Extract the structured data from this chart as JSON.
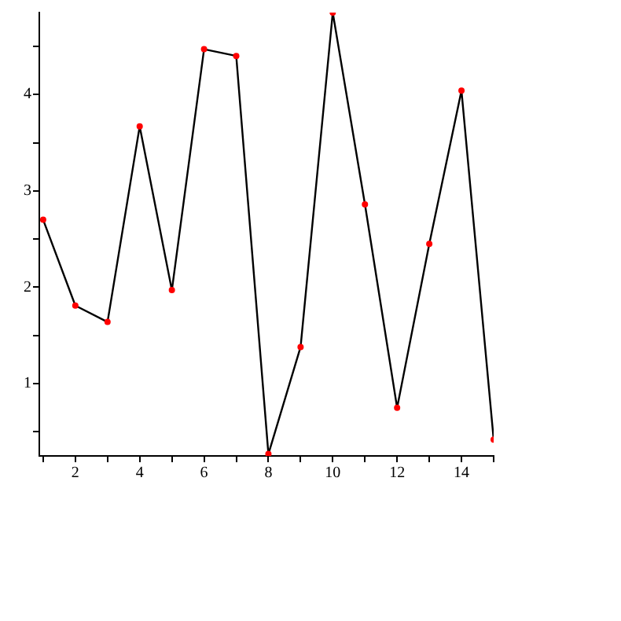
{
  "chart_data": {
    "type": "line",
    "x": [
      1,
      2,
      3,
      4,
      5,
      6,
      7,
      8,
      9,
      10,
      11,
      12,
      13,
      14,
      15
    ],
    "series": [
      {
        "color": "#000000",
        "values": [
          2.7,
          1.81,
          1.64,
          3.67,
          1.97,
          4.47,
          4.4,
          0.27,
          1.38,
          4.85,
          2.86,
          0.75,
          2.45,
          4.04,
          0.42
        ]
      }
    ],
    "marker": "circle",
    "line_style": "solid",
    "grid": false,
    "legend": false,
    "xlim": [
      0.88,
      15
    ],
    "xticks": [
      {
        "value": 1,
        "label": null
      },
      2,
      {
        "value": 3,
        "label": null
      },
      4,
      {
        "value": 5,
        "label": null
      },
      6,
      {
        "value": 7,
        "label": null
      },
      8,
      {
        "value": 9,
        "label": null
      },
      10,
      {
        "value": 11,
        "label": null
      },
      12,
      {
        "value": 13,
        "label": null
      },
      14,
      {
        "value": 15,
        "label": null
      }
    ],
    "ylim": [
      0.25,
      4.85
    ],
    "yticks": [
      {
        "value": 0.5,
        "label": null
      },
      1,
      {
        "value": 1.5,
        "label": null
      },
      2,
      {
        "value": 2.5,
        "label": null
      },
      3,
      {
        "value": 3.5,
        "label": null
      },
      4,
      {
        "value": 4.5,
        "label": null
      }
    ]
  }
}
